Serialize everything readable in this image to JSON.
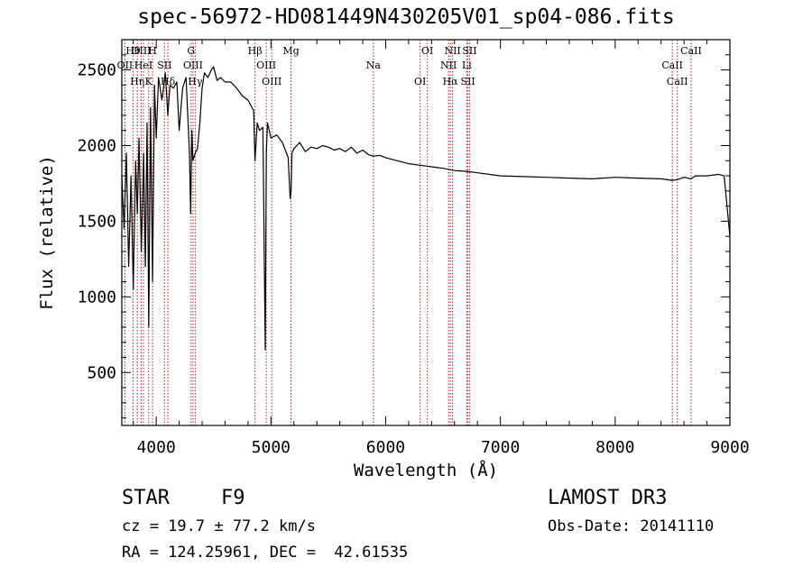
{
  "chart_data": {
    "type": "line",
    "title": "spec-56972-HD081449N430205V01_sp04-086.fits",
    "xlabel": "Wavelength (Å)",
    "ylabel": "Flux (relative)",
    "xlim": [
      3700,
      9000
    ],
    "ylim": [
      150,
      2700
    ],
    "x_ticks": [
      4000,
      5000,
      6000,
      7000,
      8000,
      9000
    ],
    "y_ticks": [
      500,
      1000,
      1500,
      2000,
      2500
    ],
    "series": [
      {
        "name": "flux",
        "x": [
          3700,
          3720,
          3740,
          3760,
          3780,
          3800,
          3820,
          3835,
          3850,
          3870,
          3890,
          3905,
          3920,
          3935,
          3950,
          3968,
          3985,
          4000,
          4020,
          4050,
          4080,
          4101,
          4120,
          4150,
          4180,
          4200,
          4230,
          4260,
          4290,
          4300,
          4310,
          4320,
          4340,
          4360,
          4380,
          4400,
          4420,
          4450,
          4480,
          4500,
          4530,
          4560,
          4600,
          4650,
          4700,
          4750,
          4800,
          4850,
          4861,
          4880,
          4900,
          4930,
          4950,
          4960,
          4970,
          5000,
          5050,
          5100,
          5150,
          5167,
          5175,
          5183,
          5200,
          5250,
          5300,
          5350,
          5400,
          5450,
          5500,
          5550,
          5600,
          5650,
          5700,
          5750,
          5800,
          5850,
          5893,
          5950,
          6000,
          6100,
          6200,
          6300,
          6400,
          6500,
          6563,
          6600,
          6700,
          6800,
          6900,
          7000,
          7200,
          7400,
          7600,
          7800,
          8000,
          8200,
          8400,
          8498,
          8542,
          8600,
          8662,
          8700,
          8800,
          8900,
          8950,
          9000
        ],
        "values": [
          1800,
          1450,
          1950,
          1200,
          1800,
          1050,
          1900,
          1550,
          2050,
          1300,
          1950,
          1200,
          2150,
          800,
          2250,
          1100,
          2400,
          2050,
          2450,
          2300,
          2480,
          2200,
          2400,
          2380,
          2420,
          2100,
          2380,
          2450,
          1950,
          1550,
          2100,
          1900,
          1950,
          1980,
          2150,
          2380,
          2480,
          2450,
          2500,
          2520,
          2430,
          2450,
          2420,
          2420,
          2380,
          2330,
          2300,
          2230,
          1900,
          2150,
          2100,
          2120,
          650,
          1950,
          2150,
          2050,
          2070,
          2020,
          1920,
          1650,
          1700,
          1950,
          1980,
          2020,
          1960,
          1990,
          1980,
          2000,
          1990,
          1970,
          1980,
          1960,
          1990,
          1950,
          1970,
          1940,
          1930,
          1935,
          1920,
          1900,
          1880,
          1870,
          1860,
          1850,
          1840,
          1835,
          1830,
          1820,
          1810,
          1800,
          1795,
          1790,
          1785,
          1780,
          1790,
          1785,
          1780,
          1770,
          1775,
          1790,
          1780,
          1800,
          1800,
          1810,
          1800,
          1400
        ]
      }
    ],
    "lines": [
      {
        "label": "Hθ",
        "wavelength": 3798
      },
      {
        "label": "OII",
        "wavelength": 3727
      },
      {
        "label": "Hη",
        "wavelength": 3835
      },
      {
        "label": "OIII",
        "wavelength": 3869
      },
      {
        "label": "HeI",
        "wavelength": 3889
      },
      {
        "label": "K",
        "wavelength": 3934
      },
      {
        "label": "H",
        "wavelength": 3968
      },
      {
        "label": "SII",
        "wavelength": 4072
      },
      {
        "label": "Hδ",
        "wavelength": 4102
      },
      {
        "label": "G",
        "wavelength": 4304
      },
      {
        "label": "OIII",
        "wavelength": 4321
      },
      {
        "label": "Hγ",
        "wavelength": 4340
      },
      {
        "label": "Hβ",
        "wavelength": 4861
      },
      {
        "label": "OIII",
        "wavelength": 4959
      },
      {
        "label": "OIII",
        "wavelength": 5007
      },
      {
        "label": "Mg",
        "wavelength": 5175
      },
      {
        "label": "Na",
        "wavelength": 5893
      },
      {
        "label": "OI",
        "wavelength": 6300
      },
      {
        "label": "OI",
        "wavelength": 6363
      },
      {
        "label": "NII",
        "wavelength": 6548
      },
      {
        "label": "Hα",
        "wavelength": 6563
      },
      {
        "label": "NII",
        "wavelength": 6583
      },
      {
        "label": "Li",
        "wavelength": 6707
      },
      {
        "label": "SII",
        "wavelength": 6717
      },
      {
        "label": "SII",
        "wavelength": 6731
      },
      {
        "label": "CaII",
        "wavelength": 8498
      },
      {
        "label": "CaII",
        "wavelength": 8542
      },
      {
        "label": "CaII",
        "wavelength": 8662
      }
    ]
  },
  "info": {
    "class": "STAR",
    "subclass": "F9",
    "survey": "LAMOST DR3",
    "cz": "cz = 19.7 ± 77.2 km/s",
    "obs_date": "Obs-Date: 20141110",
    "radec": "RA = 124.25961, DEC =  42.61535"
  },
  "colors": {
    "line_marker": "#b22222",
    "spectrum": "#000000"
  }
}
